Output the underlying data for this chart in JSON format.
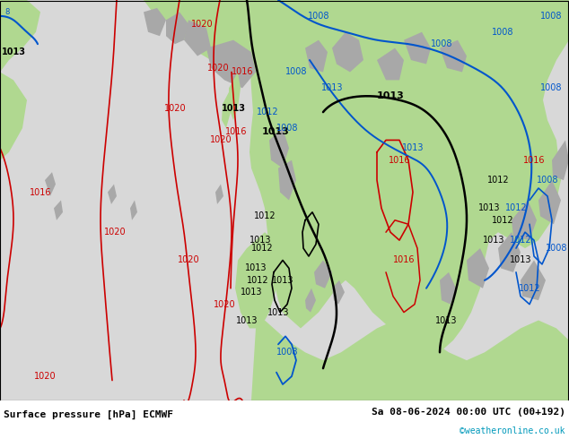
{
  "title_left": "Surface pressure [hPa] ECMWF",
  "title_right": "Sa 08-06-2024 00:00 UTC (00+192)",
  "copyright": "©weatheronline.co.uk",
  "bg_ocean": "#d8d8d8",
  "bg_land_green": "#b0d890",
  "bg_land_gray": "#a8a8a8",
  "color_red": "#cc0000",
  "color_blue": "#0055cc",
  "color_black": "#000000",
  "color_cyan": "#0099bb",
  "footer_bg": "#ffffff",
  "fig_width": 6.34,
  "fig_height": 4.9,
  "dpi": 100
}
